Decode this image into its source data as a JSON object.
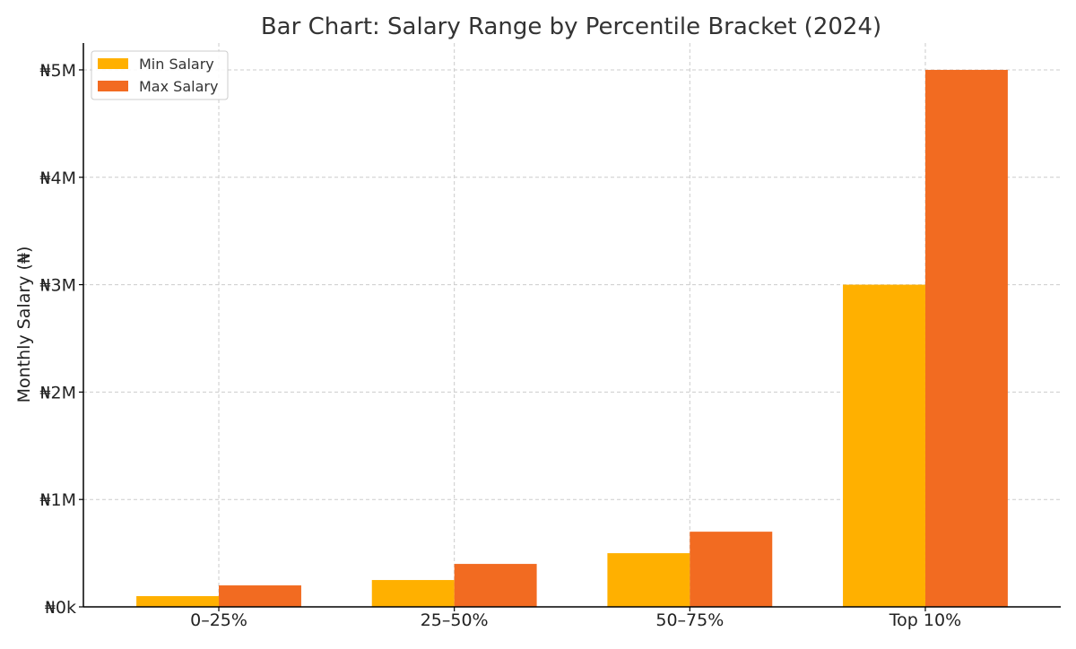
{
  "chart_data": {
    "type": "bar",
    "title": "Bar Chart: Salary Range by Percentile Bracket (2024)",
    "xlabel": "",
    "ylabel": "Monthly Salary (₦)",
    "categories": [
      "0–25%",
      "25–50%",
      "50–75%",
      "Top 10%"
    ],
    "series": [
      {
        "name": "Min Salary",
        "color": "#ffb000",
        "values": [
          100000,
          250000,
          500000,
          3000000
        ]
      },
      {
        "name": "Max Salary",
        "color": "#f26b21",
        "values": [
          200000,
          400000,
          700000,
          5000000
        ]
      }
    ],
    "ylim": [
      0,
      5250000
    ],
    "yticks": [
      {
        "value": 0,
        "label": "₦0k"
      },
      {
        "value": 1000000,
        "label": "₦1M"
      },
      {
        "value": 2000000,
        "label": "₦2M"
      },
      {
        "value": 3000000,
        "label": "₦3M"
      },
      {
        "value": 4000000,
        "label": "₦4M"
      },
      {
        "value": 5000000,
        "label": "₦5M"
      }
    ],
    "grid": true,
    "legend_position": "top-left"
  }
}
